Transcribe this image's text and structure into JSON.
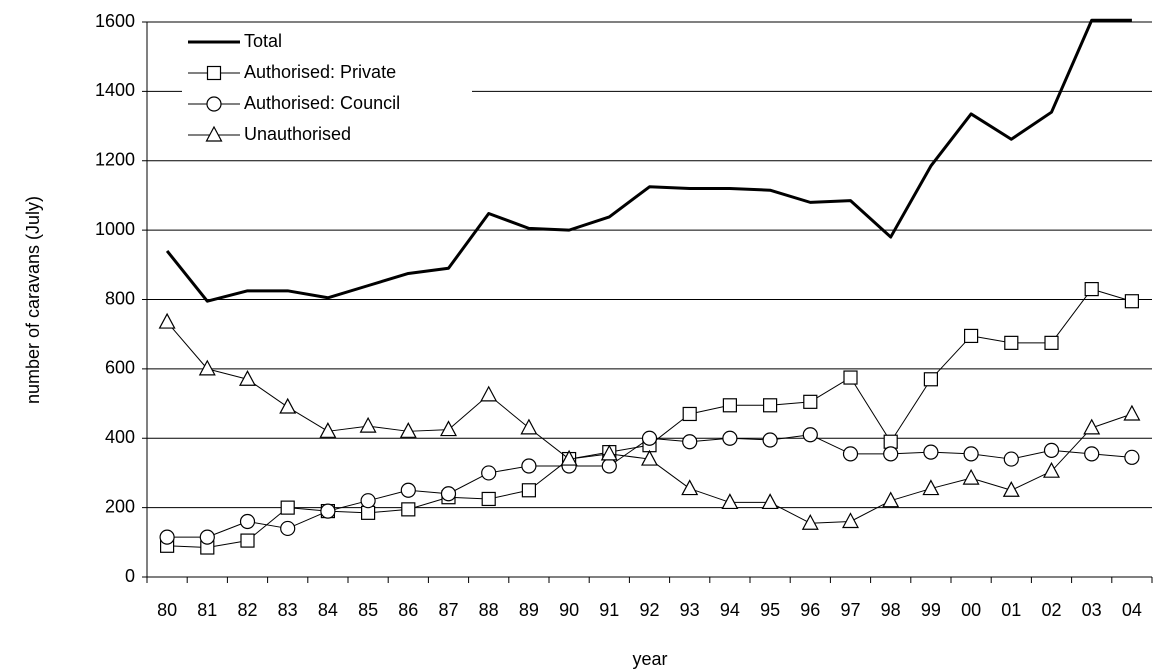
{
  "chart_data": {
    "type": "line",
    "x_label": "year",
    "y_label": "number of caravans (July)",
    "categories": [
      "80",
      "81",
      "82",
      "83",
      "84",
      "85",
      "86",
      "87",
      "88",
      "89",
      "90",
      "91",
      "92",
      "93",
      "94",
      "95",
      "96",
      "97",
      "98",
      "99",
      "00",
      "01",
      "02",
      "03",
      "04"
    ],
    "ylim": [
      0,
      1600
    ],
    "yticks": [
      0,
      200,
      400,
      600,
      800,
      1000,
      1200,
      1400,
      1600
    ],
    "grid": true,
    "legend": "top-left",
    "series": [
      {
        "name": "Total",
        "color": "#000000",
        "marker": "none",
        "width": 3,
        "values": [
          940,
          795,
          825,
          825,
          805,
          840,
          875,
          890,
          1048,
          1005,
          1000,
          1038,
          1125,
          1120,
          1120,
          1115,
          1080,
          1085,
          980,
          1185,
          1335,
          1262,
          1340,
          1605,
          1605
        ]
      },
      {
        "name": "Authorised: Private",
        "color": "#000000",
        "marker": "square",
        "width": 1,
        "values": [
          90,
          85,
          105,
          200,
          190,
          185,
          195,
          230,
          225,
          250,
          340,
          360,
          380,
          470,
          495,
          495,
          505,
          575,
          390,
          570,
          695,
          675,
          675,
          830,
          795
        ]
      },
      {
        "name": "Authorised: Council",
        "color": "#000000",
        "marker": "circle",
        "width": 1,
        "values": [
          115,
          115,
          160,
          140,
          190,
          220,
          250,
          240,
          300,
          320,
          320,
          320,
          400,
          390,
          400,
          395,
          410,
          355,
          355,
          360,
          355,
          340,
          365,
          355,
          345
        ]
      },
      {
        "name": "Unauthorised",
        "color": "#000000",
        "marker": "triangle",
        "width": 1,
        "values": [
          735,
          600,
          570,
          490,
          420,
          435,
          420,
          425,
          525,
          430,
          340,
          355,
          340,
          255,
          215,
          215,
          155,
          160,
          220,
          255,
          285,
          250,
          305,
          430,
          470
        ]
      }
    ]
  }
}
